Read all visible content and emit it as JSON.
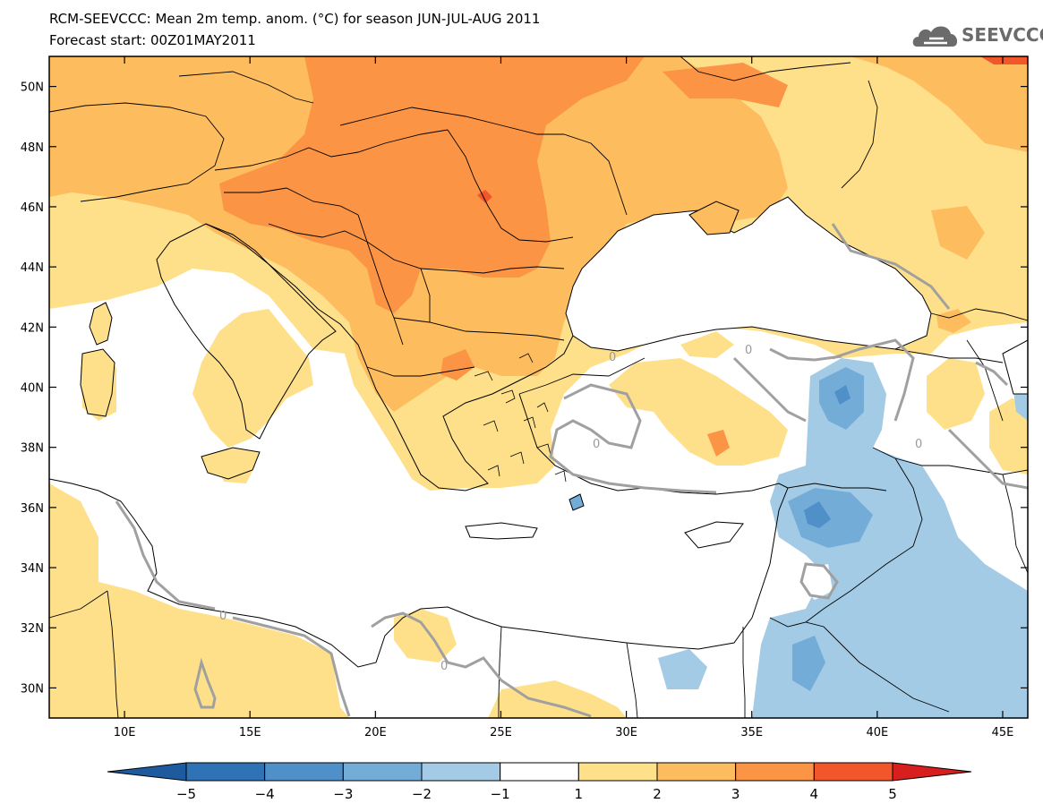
{
  "title": "RCM-SEEVCCC: Mean 2m temp. anom. (°C) for season JUN-JUL-AUG 2011",
  "subtitle": "Forecast start: 00Z01MAY2011",
  "logo": {
    "name": "seevccc-logo",
    "text": "SEEVCCC",
    "icon": "cloud-icon",
    "color": "#6b6b6b"
  },
  "map": {
    "lat_range": [
      29,
      51
    ],
    "lon_range": [
      7,
      46
    ],
    "lat_ticks": [
      {
        "value": 50,
        "label": "50N"
      },
      {
        "value": 48,
        "label": "48N"
      },
      {
        "value": 46,
        "label": "46N"
      },
      {
        "value": 44,
        "label": "44N"
      },
      {
        "value": 42,
        "label": "42N"
      },
      {
        "value": 40,
        "label": "40N"
      },
      {
        "value": 38,
        "label": "38N"
      },
      {
        "value": 36,
        "label": "36N"
      },
      {
        "value": 34,
        "label": "34N"
      },
      {
        "value": 32,
        "label": "32N"
      },
      {
        "value": 30,
        "label": "30N"
      }
    ],
    "lon_ticks": [
      {
        "value": 10,
        "label": "10E"
      },
      {
        "value": 15,
        "label": "15E"
      },
      {
        "value": 20,
        "label": "20E"
      },
      {
        "value": 25,
        "label": "25E"
      },
      {
        "value": 30,
        "label": "30E"
      },
      {
        "value": 35,
        "label": "35E"
      },
      {
        "value": 40,
        "label": "40E"
      },
      {
        "value": 45,
        "label": "45E"
      }
    ],
    "zero_contour_label": "0"
  },
  "colorbar": {
    "labels": [
      "−5",
      "−4",
      "−3",
      "−2",
      "−1",
      "1",
      "2",
      "3",
      "4",
      "5"
    ],
    "colors": [
      "#1d5a9e",
      "#2f72b6",
      "#4f90c8",
      "#74acd8",
      "#a3cbe5",
      "#ffffff",
      "#fee08b",
      "#fdbd5f",
      "#fb9444",
      "#f2572c",
      "#d71f1f"
    ]
  },
  "palette": {
    "anom_1_2": "#fee08b",
    "anom_2_3": "#fdbd5f",
    "anom_3_4": "#fb9444",
    "anom_4_5": "#f2572c",
    "anom_m1_m2": "#a3cbe5",
    "anom_m2_m3": "#74acd8",
    "anom_m3_m4": "#4f90c8",
    "contour_zero": "#a0a0a0",
    "borders": "#000000"
  }
}
